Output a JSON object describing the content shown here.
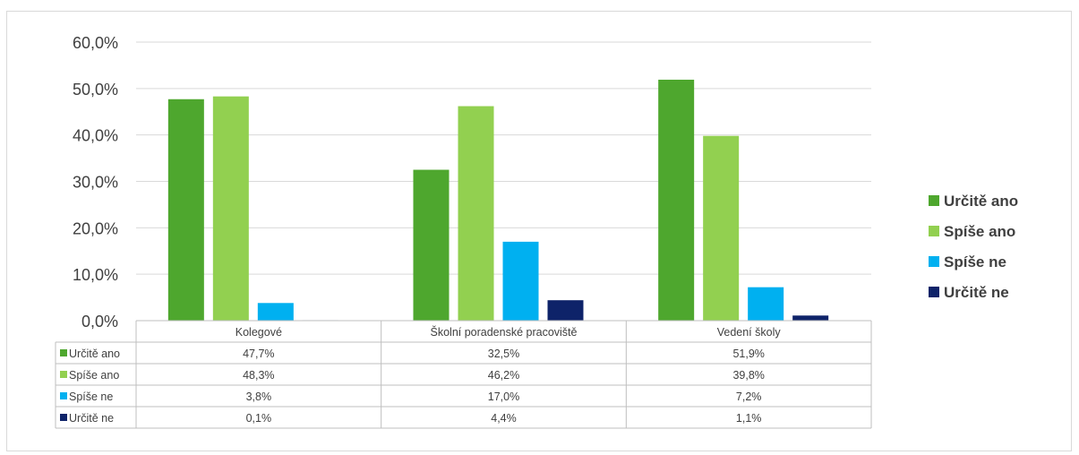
{
  "chart_data": {
    "type": "bar",
    "categories": [
      "Kolegové",
      "Školní poradenské pracoviště",
      "Vedení školy"
    ],
    "series": [
      {
        "name": "Určitě ano",
        "color": "#4ea72e",
        "values": [
          47.7,
          32.5,
          51.9
        ],
        "labels": [
          "47,7%",
          "32,5%",
          "51,9%"
        ]
      },
      {
        "name": "Spíše ano",
        "color": "#92d050",
        "values": [
          48.3,
          46.2,
          39.8
        ],
        "labels": [
          "48,3%",
          "46,2%",
          "39,8%"
        ]
      },
      {
        "name": "Spíše ne",
        "color": "#00b0f0",
        "values": [
          3.8,
          17.0,
          7.2
        ],
        "labels": [
          "3,8%",
          "17,0%",
          "7,2%"
        ]
      },
      {
        "name": "Určitě ne",
        "color": "#0e2369",
        "values": [
          0.1,
          4.4,
          1.1
        ],
        "labels": [
          "0,1%",
          "4,4%",
          "1,1%"
        ]
      }
    ],
    "ylim": [
      0,
      60
    ],
    "yticks": [
      0,
      10,
      20,
      30,
      40,
      50,
      60
    ],
    "ytick_labels": [
      "0,0%",
      "10,0%",
      "20,0%",
      "30,0%",
      "40,0%",
      "50,0%",
      "60,0%"
    ],
    "grid": true,
    "legend_position": "right",
    "data_table": true,
    "title": "",
    "xlabel": "",
    "ylabel": ""
  }
}
